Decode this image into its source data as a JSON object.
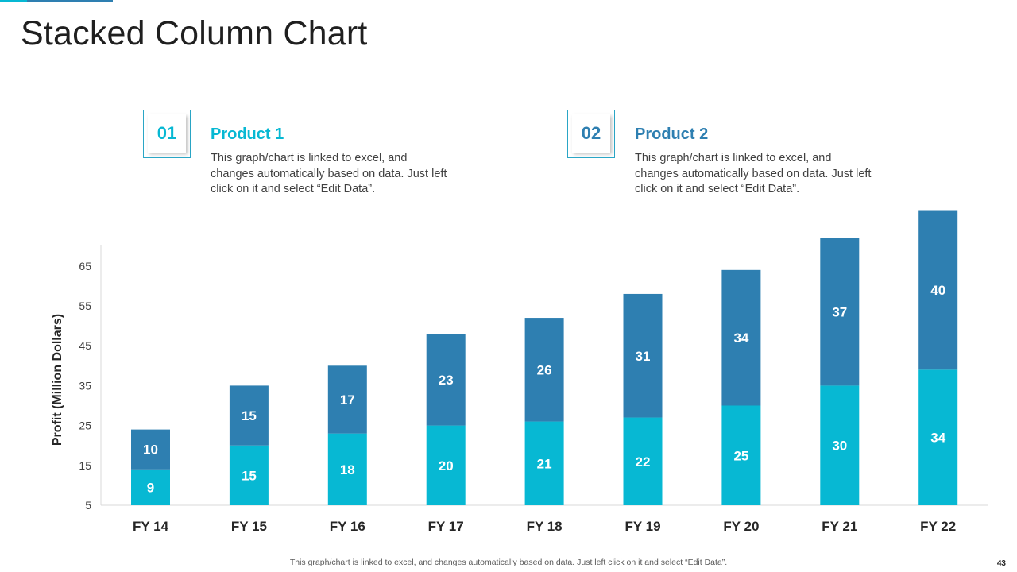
{
  "title": "Stacked Column Chart",
  "products": [
    {
      "number": "01",
      "name": "Product 1",
      "description": "This graph/chart is linked to excel, and changes automatically based on data. Just left click on it and select “Edit Data”.",
      "color": "#07b8d3"
    },
    {
      "number": "02",
      "name": "Product 2",
      "description": "This graph/chart is linked to excel, and changes automatically based on data. Just left click on it and select “Edit Data”.",
      "color": "#2e7fb1"
    }
  ],
  "chart_data": {
    "type": "bar",
    "stacked": true,
    "categories": [
      "FY 14",
      "FY 15",
      "FY 16",
      "FY 17",
      "FY 18",
      "FY 19",
      "FY 20",
      "FY 21",
      "FY 22"
    ],
    "series": [
      {
        "name": "Product 1",
        "color": "#07b8d3",
        "values": [
          9,
          15,
          18,
          20,
          21,
          22,
          25,
          30,
          34
        ]
      },
      {
        "name": "Product 2",
        "color": "#2e7fb1",
        "values": [
          10,
          15,
          17,
          23,
          26,
          31,
          34,
          37,
          40
        ]
      }
    ],
    "ylabel": "Profit  (Million Dollars)",
    "xlabel": "",
    "yticks": [
      5,
      15,
      25,
      35,
      45,
      55,
      65
    ],
    "ylim": [
      5,
      70
    ],
    "grid": false
  },
  "footer": "This graph/chart is linked to excel,  and changes automatically based on data. Just left click on it and select “Edit Data”.",
  "page_number": "43"
}
